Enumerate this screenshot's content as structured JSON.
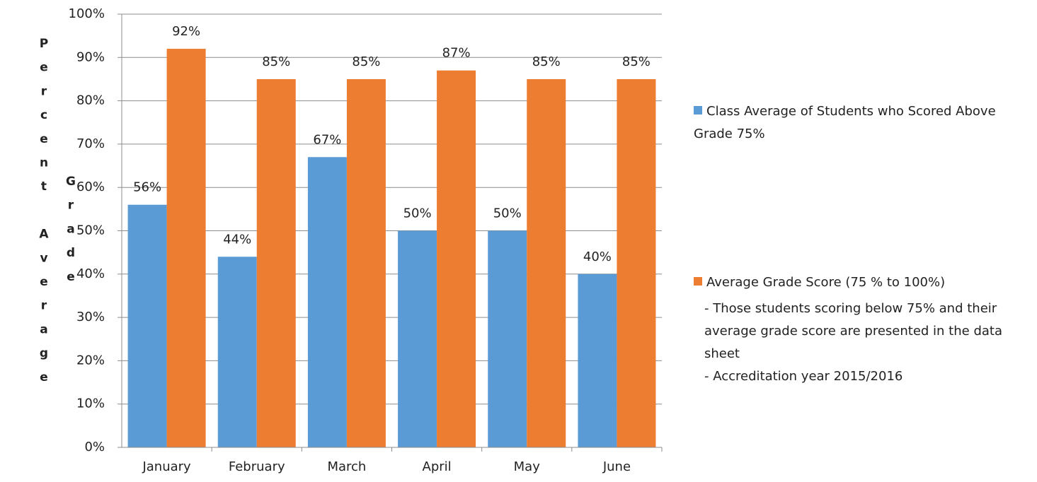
{
  "chart_data": {
    "type": "bar",
    "y_label": [
      "Percent Average",
      "Grade"
    ],
    "categories": [
      "January",
      "February",
      "March",
      "April",
      "May",
      "June"
    ],
    "series": [
      {
        "name": "Class Average of Students who Scored Above Grade 75%",
        "color": "#5b9bd5",
        "values": [
          56,
          44,
          67,
          50,
          50,
          40
        ],
        "value_labels": [
          "56%",
          "44%",
          "67%",
          "50%",
          "50%",
          "40%"
        ]
      },
      {
        "name": "Average Grade Score (75 % to 100%)",
        "color": "#ed7d31",
        "values": [
          92,
          85,
          85,
          87,
          85,
          85
        ],
        "value_labels": [
          "92%",
          "85%",
          "85%",
          "87%",
          "85%",
          "85%"
        ]
      }
    ],
    "notes": [
      "- Those students scoring below 75% and their average grade score are presented in the data sheet",
      "- Accreditation year 2015/2016"
    ],
    "ylim": [
      0,
      100
    ],
    "yticks": [
      {
        "value": 0,
        "label": "0%"
      },
      {
        "value": 10,
        "label": "10%"
      },
      {
        "value": 20,
        "label": "20%"
      },
      {
        "value": 30,
        "label": "30%"
      },
      {
        "value": 40,
        "label": "40%"
      },
      {
        "value": 50,
        "label": "50%"
      },
      {
        "value": 60,
        "label": "60%"
      },
      {
        "value": 70,
        "label": "70%"
      },
      {
        "value": 80,
        "label": "80%"
      },
      {
        "value": 90,
        "label": "90%"
      },
      {
        "value": 100,
        "label": "100%"
      }
    ],
    "grid": true,
    "legend": "right"
  }
}
